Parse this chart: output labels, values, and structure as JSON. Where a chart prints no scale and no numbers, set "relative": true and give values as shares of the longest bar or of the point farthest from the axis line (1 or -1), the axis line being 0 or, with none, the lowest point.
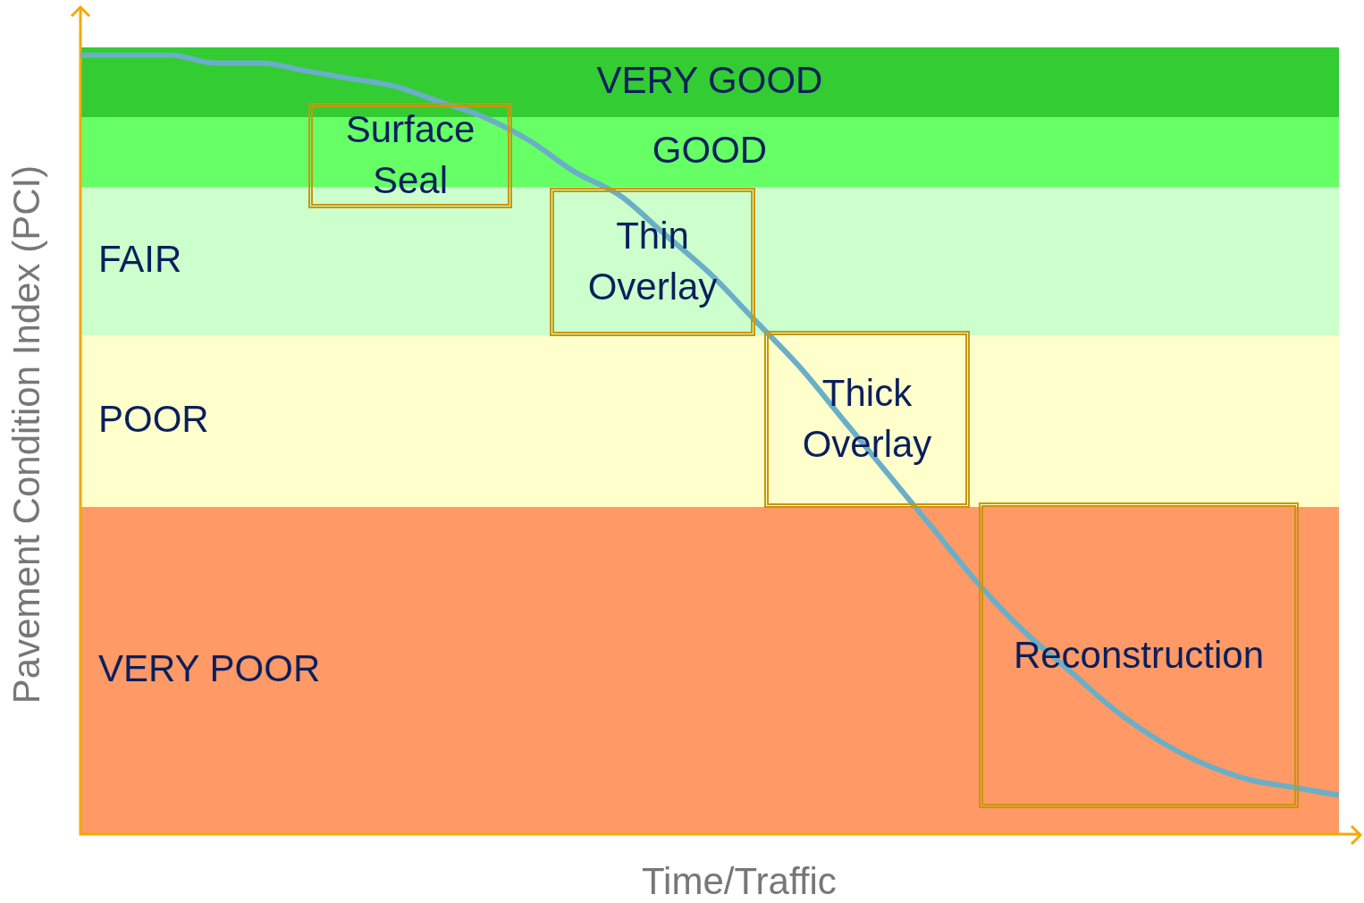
{
  "chart_data": {
    "type": "line",
    "relative": true,
    "xlabel": "Time/Traffic",
    "ylabel": "Pavement Condition Index (PCI)",
    "categories": [
      null,
      null,
      null,
      null,
      null,
      null,
      null,
      null,
      null,
      null,
      null,
      null,
      null,
      null,
      null,
      null,
      null,
      null,
      null,
      null,
      null,
      null,
      null,
      null,
      null,
      null,
      null,
      null,
      null
    ],
    "series": [
      {
        "color": "#6aafc8",
        "values": [
          1.0,
          1.0,
          1.0,
          0.99,
          0.99,
          0.98,
          0.97,
          0.96,
          0.94,
          0.92,
          0.89,
          0.85,
          0.82,
          0.77,
          0.72,
          0.66,
          0.6,
          0.53,
          0.46,
          0.39,
          0.32,
          0.26,
          0.21,
          0.16,
          0.12,
          0.09,
          0.07,
          0.06,
          0.05
        ]
      }
    ],
    "bands": [
      {
        "axis": "y",
        "from": 0.92,
        "to": 1.01,
        "label": "VERY GOOD",
        "color": "#33cc33"
      },
      {
        "axis": "y",
        "from": 0.83,
        "to": 0.92,
        "label": "GOOD",
        "color": "#66ff66"
      },
      {
        "axis": "y",
        "from": 0.64,
        "to": 0.83,
        "label": "FAIR",
        "color": "#ccffcc"
      },
      {
        "axis": "y",
        "from": 0.42,
        "to": 0.64,
        "label": "POOR",
        "color": "#ffffcc"
      },
      {
        "axis": "y",
        "from": 0,
        "to": 0.42,
        "label": "VERY POOR",
        "color": "#ff9966"
      }
    ],
    "annotations": [
      "Surface\nSeal",
      "Thin\nOverlay",
      "Thick\nOverlay",
      "Reconstruction"
    ],
    "legend": false,
    "marker": "none",
    "line_style": "solid"
  }
}
